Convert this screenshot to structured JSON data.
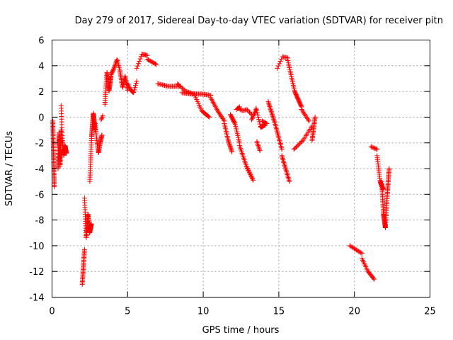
{
  "chart_data": {
    "type": "scatter",
    "title": "Day 279 of 2017, Sidereal Day-to-day VTEC variation (SDTVAR) for receiver pitn",
    "xlabel": "GPS time / hours",
    "ylabel": "SDTVAR / TECUs",
    "xlim": [
      0,
      25
    ],
    "ylim": [
      -14,
      6
    ],
    "xticks": [
      "0",
      "5",
      "10",
      "15",
      "20",
      "25"
    ],
    "yticks": [
      "6",
      "4",
      "2",
      "0",
      "-2",
      "-4",
      "-6",
      "-8",
      "-10",
      "-12",
      "-14"
    ],
    "grid": true,
    "marker": "+",
    "color": "#ff0000",
    "segments": [
      {
        "x0": 0.05,
        "x1": 0.15,
        "y": [
          -0.3,
          -5.4
        ]
      },
      {
        "x0": 0.4,
        "x1": 0.6,
        "y": [
          -4.0,
          -1.2,
          -3.8,
          -1.0
        ]
      },
      {
        "x0": 0.6,
        "x1": 0.95,
        "y": [
          0.9,
          -1.8,
          -3.0,
          -2.2,
          -2.8
        ]
      },
      {
        "x0": 2.0,
        "x1": 2.15,
        "y": [
          -13.0,
          -10.3
        ]
      },
      {
        "x0": 2.15,
        "x1": 2.6,
        "y": [
          -6.3,
          -9.4,
          -7.5,
          -9.0,
          -8.3
        ]
      },
      {
        "x0": 2.5,
        "x1": 2.85,
        "y": [
          -5.0,
          -1.5,
          0.3,
          -1.0
        ]
      },
      {
        "x0": 2.85,
        "x1": 3.3,
        "y": [
          -0.5,
          -1.8,
          -2.8,
          -2.0,
          -1.4
        ]
      },
      {
        "x0": 3.25,
        "x1": 3.35,
        "y": [
          -0.2,
          0.1
        ]
      },
      {
        "x0": 3.5,
        "x1": 3.9,
        "y": [
          1.0,
          3.5,
          2.0,
          3.2
        ]
      },
      {
        "x0": 3.9,
        "x1": 4.5,
        "y": [
          3.3,
          3.8,
          4.5,
          3.6
        ]
      },
      {
        "x0": 4.5,
        "x1": 5.0,
        "y": [
          3.5,
          2.3,
          3.2,
          2.1
        ]
      },
      {
        "x0": 5.0,
        "x1": 5.6,
        "y": [
          2.6,
          2.1,
          1.9,
          2.8
        ]
      },
      {
        "x0": 5.6,
        "x1": 6.3,
        "y": [
          3.8,
          4.9,
          4.8
        ]
      },
      {
        "x0": 6.3,
        "x1": 6.9,
        "y": [
          4.5,
          4.1
        ]
      },
      {
        "x0": 7.0,
        "x1": 8.4,
        "y": [
          2.6,
          2.4,
          2.4
        ]
      },
      {
        "x0": 8.3,
        "x1": 9.4,
        "y": [
          2.6,
          2.0,
          1.8
        ]
      },
      {
        "x0": 9.4,
        "x1": 10.4,
        "y": [
          1.8,
          0.5,
          0.0
        ]
      },
      {
        "x0": 8.6,
        "x1": 10.5,
        "y": [
          1.9,
          1.8,
          1.8,
          1.7
        ]
      },
      {
        "x0": 10.5,
        "x1": 11.4,
        "y": [
          1.5,
          0.5,
          -0.3
        ]
      },
      {
        "x0": 11.4,
        "x1": 11.9,
        "y": [
          -0.5,
          -1.8,
          -2.7
        ]
      },
      {
        "x0": 11.8,
        "x1": 12.4,
        "y": [
          0.2,
          -0.5,
          -2.0
        ]
      },
      {
        "x0": 12.2,
        "x1": 12.4,
        "y": [
          0.6,
          0.8
        ]
      },
      {
        "x0": 12.4,
        "x1": 13.3,
        "y": [
          -2.2,
          -3.8,
          -4.9
        ]
      },
      {
        "x0": 12.3,
        "x1": 13.2,
        "y": [
          0.7,
          0.5,
          0.6,
          0.2
        ]
      },
      {
        "x0": 13.2,
        "x1": 13.5,
        "y": [
          -0.2,
          0.6
        ]
      },
      {
        "x0": 13.5,
        "x1": 14.1,
        "y": [
          0.7,
          -0.8,
          -0.6
        ]
      },
      {
        "x0": 13.9,
        "x1": 14.2,
        "y": [
          -0.3,
          -0.5
        ]
      },
      {
        "x0": 13.55,
        "x1": 13.75,
        "y": [
          -1.9,
          -2.6
        ]
      },
      {
        "x0": 14.3,
        "x1": 15.2,
        "y": [
          1.2,
          -0.5,
          -2.5
        ]
      },
      {
        "x0": 15.2,
        "x1": 15.7,
        "y": [
          -3.0,
          -5.0
        ]
      },
      {
        "x0": 14.9,
        "x1": 15.6,
        "y": [
          3.8,
          4.7,
          4.6
        ]
      },
      {
        "x0": 15.6,
        "x1": 16.5,
        "y": [
          4.4,
          2.0,
          0.8
        ]
      },
      {
        "x0": 16.5,
        "x1": 17.0,
        "y": [
          0.6,
          -0.3
        ]
      },
      {
        "x0": 16.0,
        "x1": 17.2,
        "y": [
          -2.5,
          -1.8,
          -0.7
        ]
      },
      {
        "x0": 17.2,
        "x1": 17.4,
        "y": [
          -1.8,
          0.0
        ]
      },
      {
        "x0": 19.7,
        "x1": 20.5,
        "y": [
          -10.0,
          -10.3,
          -10.6
        ]
      },
      {
        "x0": 20.5,
        "x1": 21.3,
        "y": [
          -11.0,
          -12.0,
          -12.6
        ]
      },
      {
        "x0": 21.1,
        "x1": 21.5,
        "y": [
          -2.3,
          -2.5
        ]
      },
      {
        "x0": 21.5,
        "x1": 21.9,
        "y": [
          -3.0,
          -5.0,
          -5.6
        ]
      },
      {
        "x0": 21.8,
        "x1": 22.3,
        "y": [
          -5.0,
          -7.5,
          -8.6,
          -6.0,
          -4.0
        ]
      }
    ]
  }
}
